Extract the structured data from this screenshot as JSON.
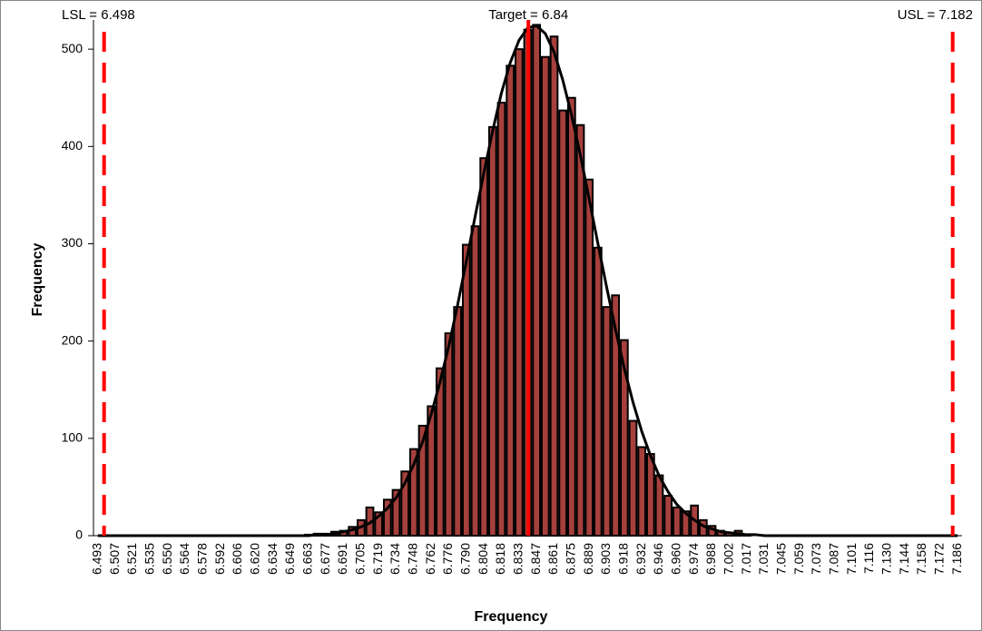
{
  "chart_data": {
    "type": "bar",
    "x_label": "Frequency",
    "y_label": "Frequency",
    "categories": [
      "6.493",
      null,
      "6.507",
      null,
      "6.521",
      null,
      "6.535",
      null,
      "6.550",
      null,
      "6.564",
      null,
      "6.578",
      null,
      "6.592",
      null,
      "6.606",
      null,
      "6.620",
      null,
      "6.634",
      null,
      "6.649",
      null,
      "6.663",
      null,
      "6.677",
      null,
      "6.691",
      null,
      "6.705",
      null,
      "6.719",
      null,
      "6.734",
      null,
      "6.748",
      null,
      "6.762",
      null,
      "6.776",
      null,
      "6.790",
      null,
      "6.804",
      null,
      "6.818",
      null,
      "6.833",
      null,
      "6.847",
      null,
      "6.861",
      null,
      "6.875",
      null,
      "6.889",
      null,
      "6.903",
      null,
      "6.918",
      null,
      "6.932",
      null,
      "6.946",
      null,
      "6.960",
      null,
      "6.974",
      null,
      "6.988",
      null,
      "7.002",
      null,
      "7.017",
      null,
      "7.031",
      null,
      "7.045",
      null,
      "7.059",
      null,
      "7.073",
      null,
      "7.087",
      null,
      "7.101",
      null,
      "7.116",
      null,
      "7.130",
      null,
      "7.144",
      null,
      "7.158",
      null,
      "7.172",
      null,
      "7.186"
    ],
    "series": [
      {
        "type": "bar",
        "color": "#a5403c",
        "values": [
          0,
          0,
          0,
          0,
          0,
          0,
          0,
          0,
          0,
          0,
          0,
          0,
          0,
          0,
          0,
          0,
          0,
          0,
          0,
          0,
          0,
          0,
          0,
          0,
          1,
          2,
          2,
          4,
          5,
          9,
          16,
          29,
          24,
          37,
          47,
          66,
          89,
          113,
          133,
          172,
          208,
          235,
          299,
          318,
          388,
          420,
          445,
          483,
          500,
          520,
          525,
          492,
          513,
          437,
          450,
          422,
          366,
          296,
          235,
          247,
          201,
          118,
          91,
          84,
          62,
          41,
          29,
          25,
          31,
          16,
          10,
          5,
          3,
          5,
          1,
          0,
          0,
          0,
          0,
          0,
          0,
          0,
          0,
          0,
          0,
          0,
          0,
          0,
          0,
          0,
          0,
          0,
          0,
          0,
          0,
          0,
          0,
          0,
          0
        ]
      },
      {
        "type": "line",
        "color": "#000000",
        "values": [
          0,
          0,
          0,
          0,
          0,
          0,
          0,
          0,
          0,
          0,
          0,
          0,
          0,
          0,
          0,
          0,
          0,
          0,
          0,
          0,
          0,
          0,
          0,
          0,
          0,
          1,
          1,
          2,
          4,
          6,
          9,
          13,
          20,
          28,
          39,
          54,
          73,
          96,
          125,
          158,
          195,
          237,
          282,
          328,
          373,
          416,
          455,
          486,
          509,
          522,
          524,
          516,
          497,
          468,
          432,
          391,
          346,
          300,
          255,
          212,
          172,
          137,
          107,
          82,
          61,
          45,
          32,
          23,
          16,
          10,
          7,
          4,
          3,
          2,
          1,
          1,
          0,
          0,
          0,
          0,
          0,
          0,
          0,
          0,
          0,
          0,
          0,
          0,
          0,
          0,
          0,
          0,
          0,
          0,
          0,
          0,
          0,
          0,
          0
        ]
      }
    ],
    "ylim": [
      0,
      530
    ],
    "yticks": [
      0,
      100,
      200,
      300,
      400,
      500
    ],
    "grid": false,
    "spec_lines": [
      {
        "label": "LSL = 6.498",
        "value": 6.498,
        "style": "dashed",
        "color": "#ff0000"
      },
      {
        "label": "Target = 6.84",
        "value": 6.84,
        "style": "solid",
        "color": "#ff0000"
      },
      {
        "label": "USL = 7.182",
        "value": 7.182,
        "style": "dashed",
        "color": "#ff0000"
      }
    ]
  }
}
